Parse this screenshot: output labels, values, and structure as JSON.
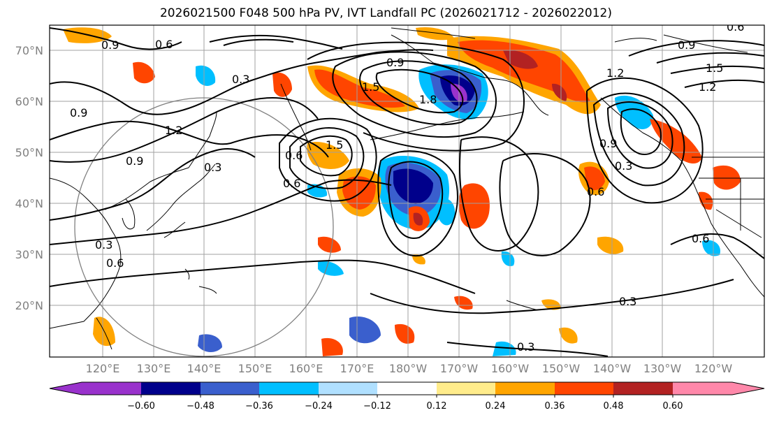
{
  "title": "2026021500 F048 500 hPa PV, IVT Landfall PC (2026021712 - 2026022012)",
  "map": {
    "lat_labels": [
      "70°N",
      "60°N",
      "50°N",
      "40°N",
      "30°N",
      "20°N"
    ],
    "lon_labels": [
      "120°E",
      "130°E",
      "140°E",
      "150°E",
      "160°E",
      "170°E",
      "180°W",
      "170°W",
      "160°W",
      "150°W",
      "140°W",
      "130°W",
      "120°W"
    ],
    "contour_labels": [
      "0.9",
      "0.6",
      "1.2",
      "0.3",
      "1.5",
      "1.8",
      "0.9",
      "0.6",
      "0.3",
      "0.6",
      "0.3",
      "0.6",
      "0.9",
      "1.5",
      "0.9",
      "1.2",
      "0.3",
      "0.6",
      "0.3",
      "0.6",
      "1.2",
      "0.9",
      "0.6",
      "1.5",
      "0.9",
      "0.3"
    ]
  },
  "colorbar": {
    "ticks": [
      "−0.60",
      "−0.48",
      "−0.36",
      "−0.24",
      "−0.12",
      "0.12",
      "0.24",
      "0.36",
      "0.48",
      "0.60"
    ],
    "colors": [
      "#9932cc",
      "#00008b",
      "#3a5fcd",
      "#00bfff",
      "#b0e0ff",
      "#ffffff",
      "#ffec8b",
      "#ffa500",
      "#ff4500",
      "#b22222",
      "#ff88aa"
    ]
  }
}
